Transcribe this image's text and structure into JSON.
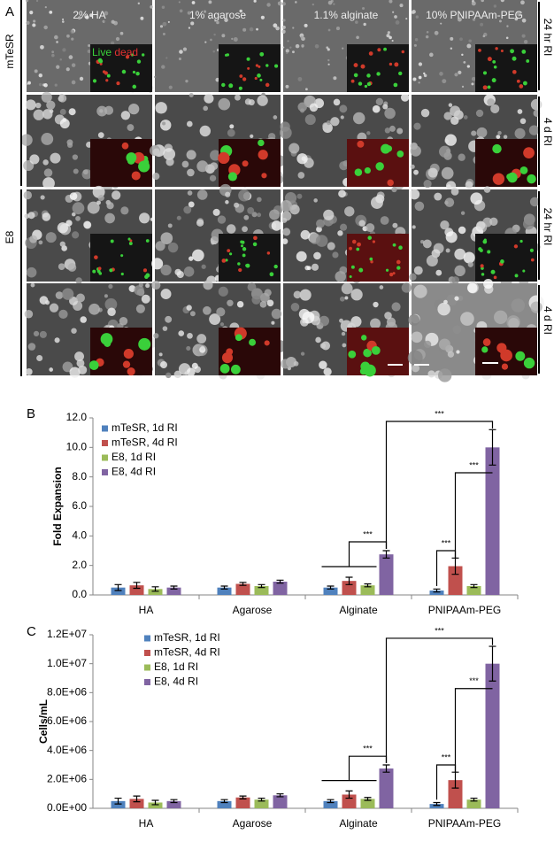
{
  "panel_a": {
    "label": "A",
    "columns": [
      "2% HA",
      "1% agarose",
      "1.1% alginate",
      "10% PNIPAAm-PEG"
    ],
    "media": [
      "mTeSR",
      "E8"
    ],
    "conditions": [
      "24 hr RI",
      "4 d RI",
      "24 hr RI",
      "4 d RI"
    ],
    "inset_label": [
      "Live",
      "dead"
    ]
  },
  "chart_data": [
    {
      "type": "bar",
      "panel_label": "B",
      "ylabel": "Fold Expansion",
      "categories": [
        "HA",
        "Agarose",
        "Alginate",
        "PNIPAAm-PEG"
      ],
      "series": [
        {
          "name": "mTeSR, 1d RI",
          "color": "#4f81bd",
          "values": [
            0.5,
            0.5,
            0.5,
            0.3
          ],
          "errors": [
            0.2,
            0.1,
            0.1,
            0.1
          ]
        },
        {
          "name": "mTeSR, 4d RI",
          "color": "#c0504d",
          "values": [
            0.65,
            0.75,
            0.95,
            1.95
          ],
          "errors": [
            0.2,
            0.1,
            0.25,
            0.55
          ]
        },
        {
          "name": "E8, 1d RI",
          "color": "#9bbb59",
          "values": [
            0.4,
            0.6,
            0.65,
            0.6
          ],
          "errors": [
            0.15,
            0.1,
            0.1,
            0.1
          ]
        },
        {
          "name": "E8, 4d RI",
          "color": "#8064a2",
          "values": [
            0.5,
            0.9,
            2.75,
            10.0
          ],
          "errors": [
            0.1,
            0.1,
            0.25,
            1.2
          ]
        }
      ],
      "ylim": [
        0,
        12
      ],
      "yticks": [
        {
          "value": 0,
          "label": "0.0"
        },
        {
          "value": 2,
          "label": "2.0"
        },
        {
          "value": 4,
          "label": "4.0"
        },
        {
          "value": 6,
          "label": "6.0"
        },
        {
          "value": 8,
          "label": "8.0"
        },
        {
          "value": 10,
          "label": "10.0"
        },
        {
          "value": 12,
          "label": "12.0"
        }
      ],
      "grid": false,
      "legend": "upper left",
      "annotations": [
        "***",
        "***",
        "***",
        "***"
      ]
    },
    {
      "type": "bar",
      "panel_label": "C",
      "ylabel": "Cells/mL",
      "categories": [
        "HA",
        "Agarose",
        "Alginate",
        "PNIPAAm-PEG"
      ],
      "series": [
        {
          "name": "mTeSR, 1d RI",
          "color": "#4f81bd",
          "values": [
            500000,
            500000,
            500000,
            300000
          ],
          "errors": [
            200000,
            100000,
            100000,
            100000
          ]
        },
        {
          "name": "mTeSR, 4d RI",
          "color": "#c0504d",
          "values": [
            650000,
            750000,
            950000,
            1950000
          ],
          "errors": [
            200000,
            100000,
            250000,
            550000
          ]
        },
        {
          "name": "E8, 1d RI",
          "color": "#9bbb59",
          "values": [
            400000,
            600000,
            650000,
            600000
          ],
          "errors": [
            150000,
            100000,
            100000,
            100000
          ]
        },
        {
          "name": "E8, 4d RI",
          "color": "#8064a2",
          "values": [
            500000,
            900000,
            2750000,
            10000000
          ],
          "errors": [
            100000,
            100000,
            250000,
            1200000
          ]
        }
      ],
      "ylim": [
        0,
        12000000
      ],
      "yticks": [
        {
          "value": 0,
          "label": "0.0E+00"
        },
        {
          "value": 2000000,
          "label": "2.0E+06"
        },
        {
          "value": 4000000,
          "label": "4.0E+06"
        },
        {
          "value": 6000000,
          "label": "6.0E+06"
        },
        {
          "value": 8000000,
          "label": "8.0E+06"
        },
        {
          "value": 10000000,
          "label": "1.0E+07"
        },
        {
          "value": 12000000,
          "label": "1.2E+07"
        }
      ],
      "grid": false,
      "legend": "upper left",
      "annotations": [
        "***",
        "***",
        "***",
        "***"
      ]
    }
  ]
}
